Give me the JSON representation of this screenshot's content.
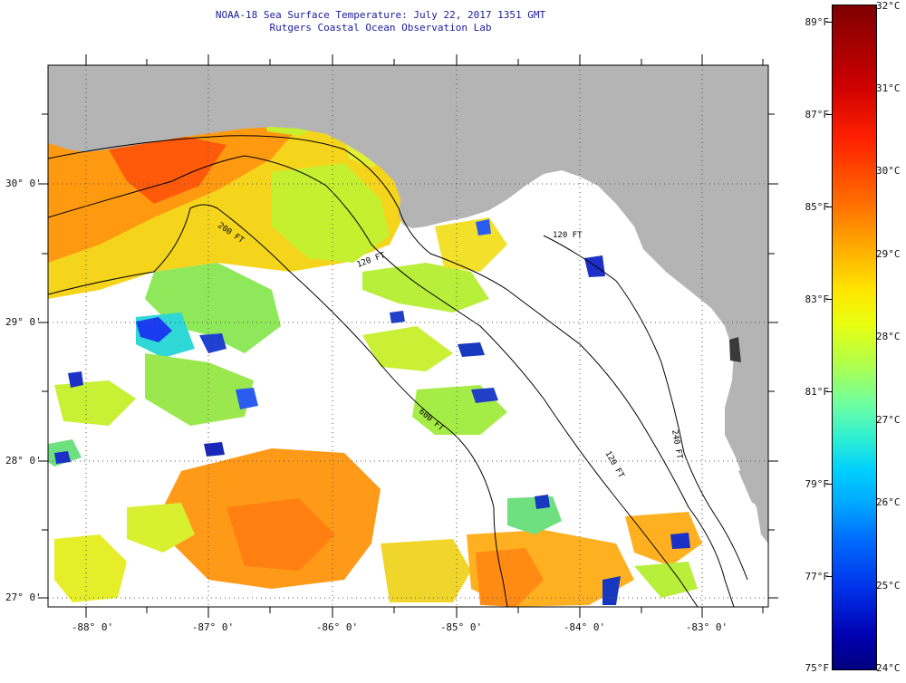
{
  "header": {
    "title_line1": "NOAA-18 Sea Surface Temperature:  July 22, 2017 1351 GMT",
    "title_line2": "Rutgers Coastal Ocean Observation Lab"
  },
  "map": {
    "lat_labels": [
      "30° 0'",
      "29° 0'",
      "28° 0'",
      "27° 0'"
    ],
    "lon_labels": [
      "-88° 0'",
      "-87° 0'",
      "-86° 0'",
      "-85° 0'",
      "-84° 0'",
      "-83° 0'"
    ],
    "isobath_labels": [
      "200 FT",
      "120 FT",
      "600 FT",
      "120 FT",
      "120 FT",
      "240 FT"
    ],
    "colors": {
      "land": "#b4b4b4",
      "cloud": "#ffffff",
      "frame": "#000000"
    }
  },
  "colorbar": {
    "celsius_labels": [
      "32°C",
      "31°C",
      "30°C",
      "29°C",
      "28°C",
      "27°C",
      "26°C",
      "25°C",
      "24°C"
    ],
    "fahrenheit_labels": [
      "89°F",
      "87°F",
      "85°F",
      "83°F",
      "81°F",
      "79°F",
      "77°F",
      "75°F"
    ]
  }
}
